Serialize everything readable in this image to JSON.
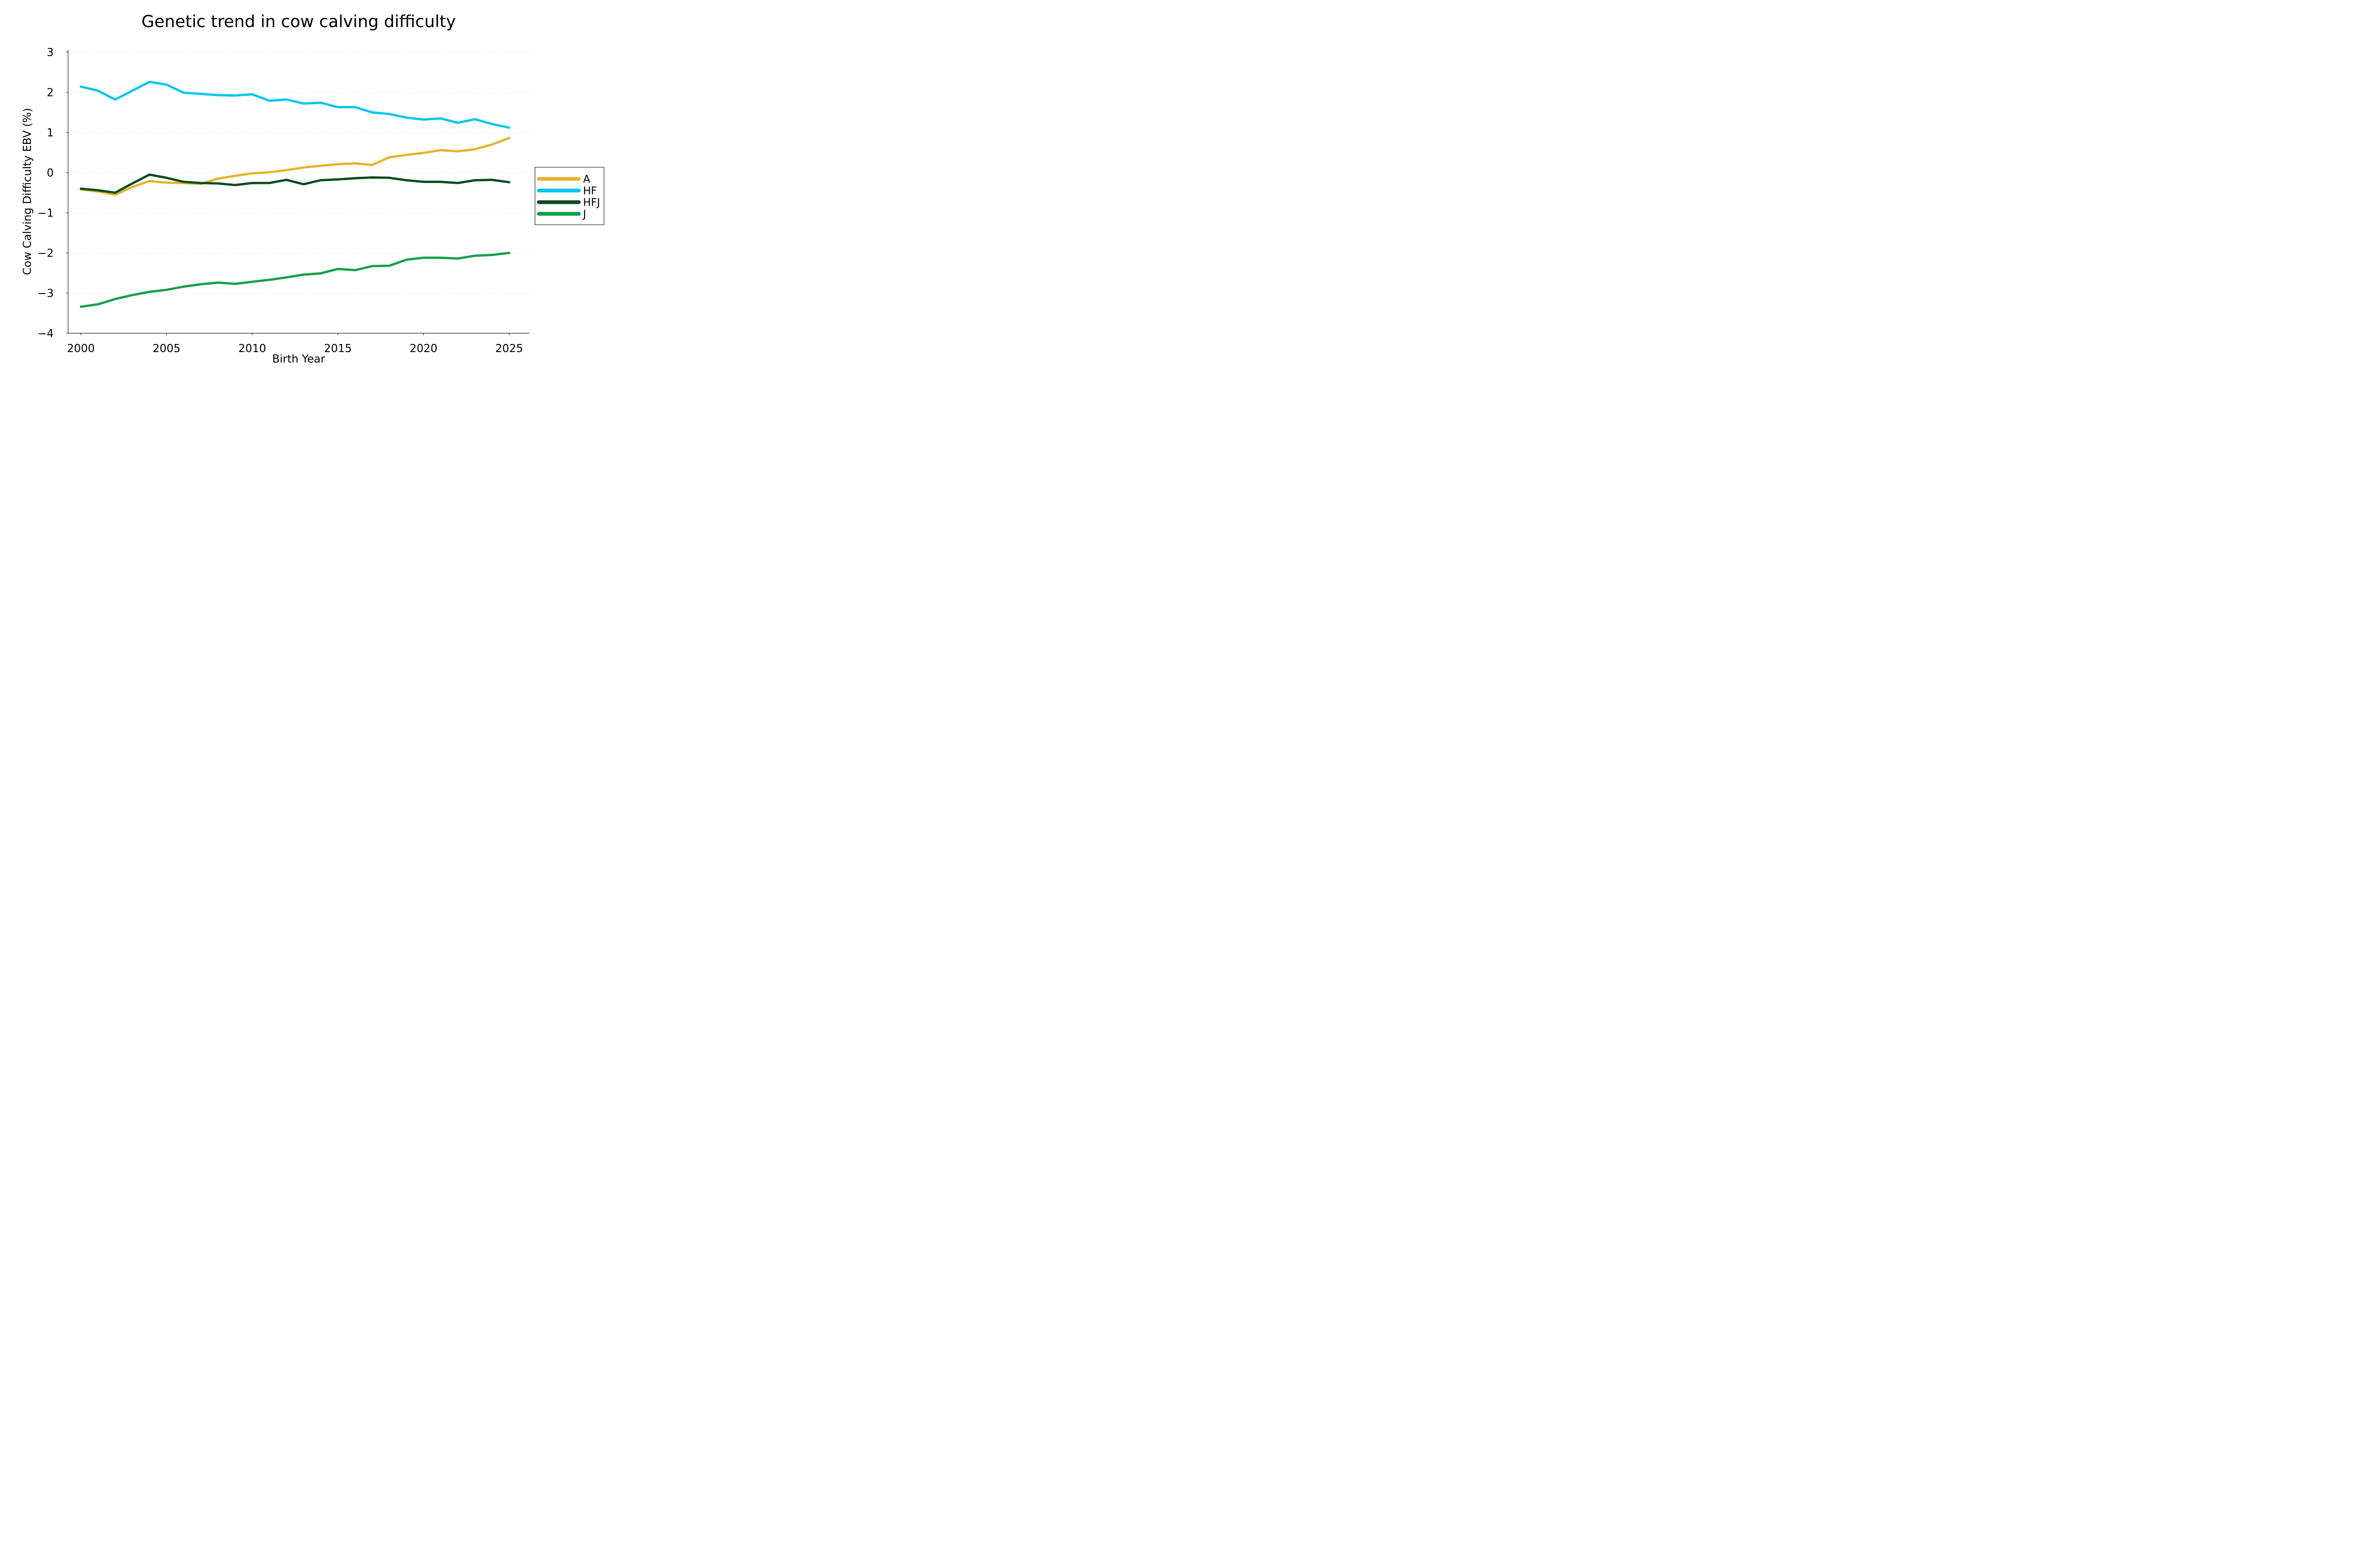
{
  "chart_data": {
    "type": "line",
    "title": "Genetic trend in cow calving difficulty",
    "xlabel": "Birth Year",
    "ylabel": "Cow Calving Difficulty EBV (%)",
    "xlim": [
      2000,
      2025
    ],
    "ylim": [
      -4,
      3
    ],
    "grid": "horizontal-dashed",
    "legend_position": "right-outside",
    "x": [
      2000,
      2001,
      2002,
      2003,
      2004,
      2005,
      2006,
      2007,
      2008,
      2009,
      2010,
      2011,
      2012,
      2013,
      2014,
      2015,
      2016,
      2017,
      2018,
      2019,
      2020,
      2021,
      2022,
      2023,
      2024,
      2025
    ],
    "xticks": [
      2000,
      2005,
      2010,
      2015,
      2020,
      2025
    ],
    "xtick_labels": [
      "2000",
      "2005",
      "2010",
      "2015",
      "2020",
      "2025"
    ],
    "yticks": [
      3,
      2,
      1,
      0,
      -1,
      -2,
      -3,
      -4
    ],
    "ytick_labels": [
      "3",
      "2",
      "1",
      "0",
      "−1",
      "−2",
      "−3",
      "−4"
    ],
    "series": [
      {
        "name": "A",
        "color": "#E5B32F",
        "values": [
          -0.42,
          -0.47,
          -0.55,
          -0.36,
          -0.21,
          -0.25,
          -0.26,
          -0.28,
          -0.15,
          -0.08,
          -0.02,
          0.01,
          0.06,
          0.13,
          0.17,
          0.21,
          0.23,
          0.19,
          0.38,
          0.44,
          0.49,
          0.56,
          0.53,
          0.58,
          0.7,
          0.86
        ]
      },
      {
        "name": "HF",
        "color": "#0AC6EC",
        "values": [
          2.14,
          2.04,
          1.82,
          2.04,
          2.26,
          2.19,
          1.99,
          1.96,
          1.93,
          1.92,
          1.95,
          1.79,
          1.82,
          1.72,
          1.74,
          1.63,
          1.63,
          1.5,
          1.46,
          1.37,
          1.32,
          1.35,
          1.24,
          1.33,
          1.21,
          1.12
        ]
      },
      {
        "name": "HFJ",
        "color": "#0B4C20",
        "values": [
          -0.4,
          -0.44,
          -0.5,
          -0.27,
          -0.05,
          -0.13,
          -0.23,
          -0.26,
          -0.27,
          -0.31,
          -0.26,
          -0.26,
          -0.18,
          -0.29,
          -0.19,
          -0.17,
          -0.14,
          -0.12,
          -0.13,
          -0.19,
          -0.23,
          -0.23,
          -0.26,
          -0.19,
          -0.18,
          -0.24
        ]
      },
      {
        "name": "J",
        "color": "#15A04C",
        "values": [
          -3.34,
          -3.28,
          -3.15,
          -3.05,
          -2.97,
          -2.92,
          -2.84,
          -2.78,
          -2.74,
          -2.77,
          -2.72,
          -2.67,
          -2.61,
          -2.54,
          -2.51,
          -2.4,
          -2.43,
          -2.33,
          -2.32,
          -2.17,
          -2.12,
          -2.12,
          -2.14,
          -2.07,
          -2.05,
          -2.0
        ]
      }
    ]
  }
}
